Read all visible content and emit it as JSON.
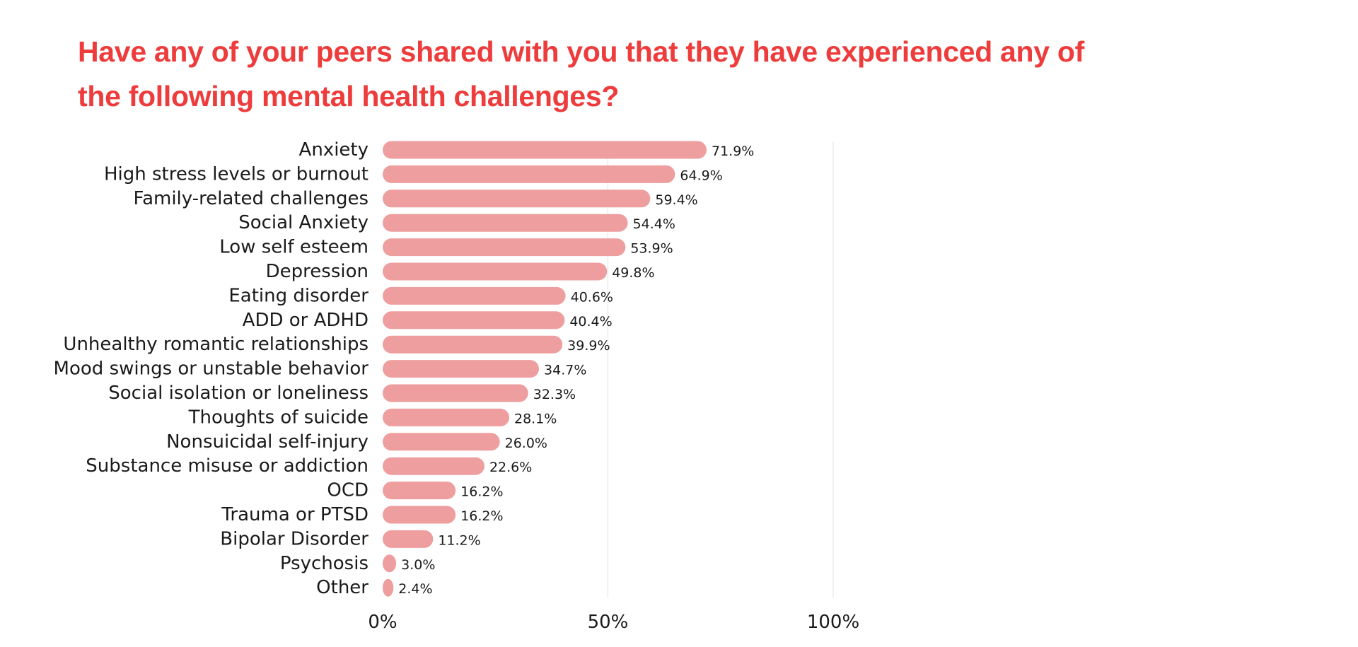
{
  "chart_data": {
    "type": "bar",
    "orientation": "horizontal",
    "title": "Have any of your peers shared with you that they have experienced any of the following mental health challenges?",
    "categories": [
      "Anxiety",
      "High stress levels or burnout",
      "Family-related challenges",
      "Social Anxiety",
      "Low self esteem",
      "Depression",
      "Eating disorder",
      "ADD or ADHD",
      "Unhealthy romantic relationships",
      "Mood swings or unstable behavior",
      "Social isolation or loneliness",
      "Thoughts of suicide",
      "Nonsuicidal self-injury",
      "Substance misuse or addiction",
      "OCD",
      "Trauma or PTSD",
      "Bipolar Disorder",
      "Psychosis",
      "Other"
    ],
    "values": [
      71.9,
      64.9,
      59.4,
      54.4,
      53.9,
      49.8,
      40.6,
      40.4,
      39.9,
      34.7,
      32.3,
      28.1,
      26.0,
      22.6,
      16.2,
      16.2,
      11.2,
      3.0,
      2.4
    ],
    "value_labels": [
      "71.9%",
      "64.9%",
      "59.4%",
      "54.4%",
      "53.9%",
      "49.8%",
      "40.6%",
      "40.4%",
      "39.9%",
      "34.7%",
      "32.3%",
      "28.1%",
      "26.0%",
      "22.6%",
      "16.2%",
      "16.2%",
      "11.2%",
      "3.0%",
      "2.4%"
    ],
    "xlim": [
      0,
      100
    ],
    "xticks": [
      0,
      50,
      100
    ],
    "xtick_labels": [
      "0%",
      "50%",
      "100%"
    ],
    "grid": true,
    "legend": "none",
    "bar_color": "#ee9e9e",
    "title_color": "#ee3b3b",
    "grid_color": "#e2e2e2"
  }
}
